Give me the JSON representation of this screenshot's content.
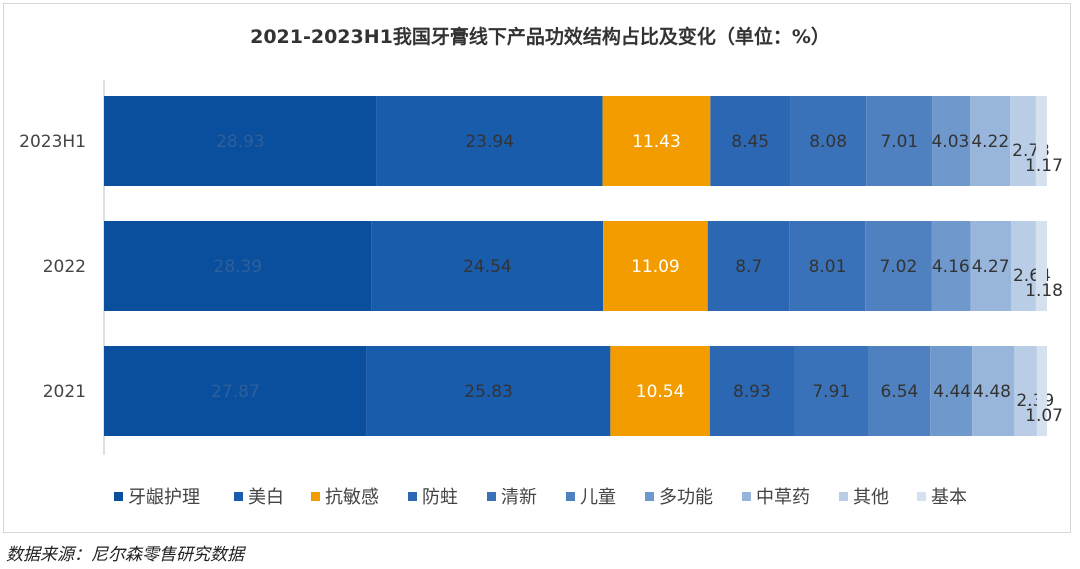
{
  "chart_data": {
    "type": "bar",
    "orientation": "horizontal",
    "stacked": true,
    "title": "2021-2023H1我国牙膏线下产品功效结构占比及变化（单位：%）",
    "xlim": [
      0,
      100
    ],
    "grid": false,
    "legend_position": "bottom",
    "categories": [
      "2023H1",
      "2022",
      "2021"
    ],
    "series": [
      {
        "name": "牙龈护理",
        "color": "#0a4f9e",
        "values": [
          28.93,
          28.39,
          27.87
        ]
      },
      {
        "name": "美白",
        "color": "#1a5cac",
        "values": [
          23.94,
          24.54,
          25.83
        ]
      },
      {
        "name": "抗敏感",
        "color": "#f39c00",
        "values": [
          11.43,
          11.09,
          10.54
        ]
      },
      {
        "name": "防蛀",
        "color": "#2c67b4",
        "values": [
          8.45,
          8.7,
          8.93
        ]
      },
      {
        "name": "清新",
        "color": "#3a72ba",
        "values": [
          8.08,
          8.01,
          7.91
        ]
      },
      {
        "name": "儿童",
        "color": "#4f81c0",
        "values": [
          7.01,
          7.02,
          6.54
        ]
      },
      {
        "name": "多功能",
        "color": "#6f98cc",
        "values": [
          4.03,
          4.16,
          4.44
        ]
      },
      {
        "name": "中草药",
        "color": "#98b6db",
        "values": [
          4.22,
          4.27,
          4.48
        ]
      },
      {
        "name": "其他",
        "color": "#b9cde7",
        "values": [
          2.73,
          2.64,
          2.39
        ]
      },
      {
        "name": "基本",
        "color": "#d6e1f0",
        "values": [
          1.17,
          1.18,
          1.07
        ]
      }
    ]
  },
  "source": "数据来源：尼尔森零售研究数据"
}
